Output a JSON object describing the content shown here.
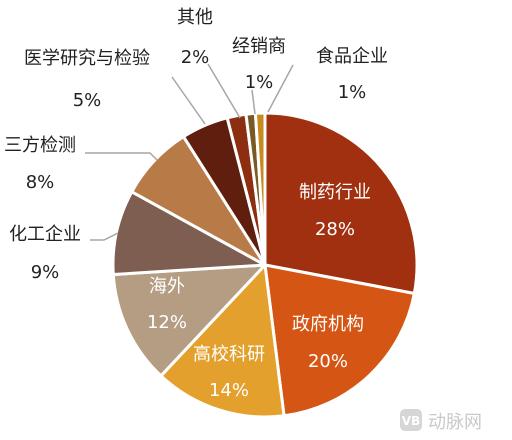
{
  "chart_data": {
    "type": "pie",
    "title": "",
    "slices": [
      {
        "label": "制药行业",
        "value": 28,
        "pct_text": "28%",
        "color": "#a0300f"
      },
      {
        "label": "政府机构",
        "value": 20,
        "pct_text": "20%",
        "color": "#d45514"
      },
      {
        "label": "高校科研",
        "value": 14,
        "pct_text": "14%",
        "color": "#e3a02c"
      },
      {
        "label": "海外",
        "value": 12,
        "pct_text": "12%",
        "color": "#b49d82"
      },
      {
        "label": "化工企业",
        "value": 9,
        "pct_text": "9%",
        "color": "#7d5e51"
      },
      {
        "label": "三方检测",
        "value": 8,
        "pct_text": "8%",
        "color": "#b87b48"
      },
      {
        "label": "医学研究与检验",
        "value": 5,
        "pct_text": "5%",
        "color": "#5f1e0e"
      },
      {
        "label": "其他",
        "value": 2,
        "pct_text": "2%",
        "color": "#8e2e10"
      },
      {
        "label": "经销商",
        "value": 1,
        "pct_text": "1%",
        "color": "#7a5a24"
      },
      {
        "label": "食品企业",
        "value": 1,
        "pct_text": "1%",
        "color": "#c98a1e"
      }
    ]
  },
  "watermark": {
    "text": "动脉网",
    "icon": "vb-logo-icon"
  }
}
